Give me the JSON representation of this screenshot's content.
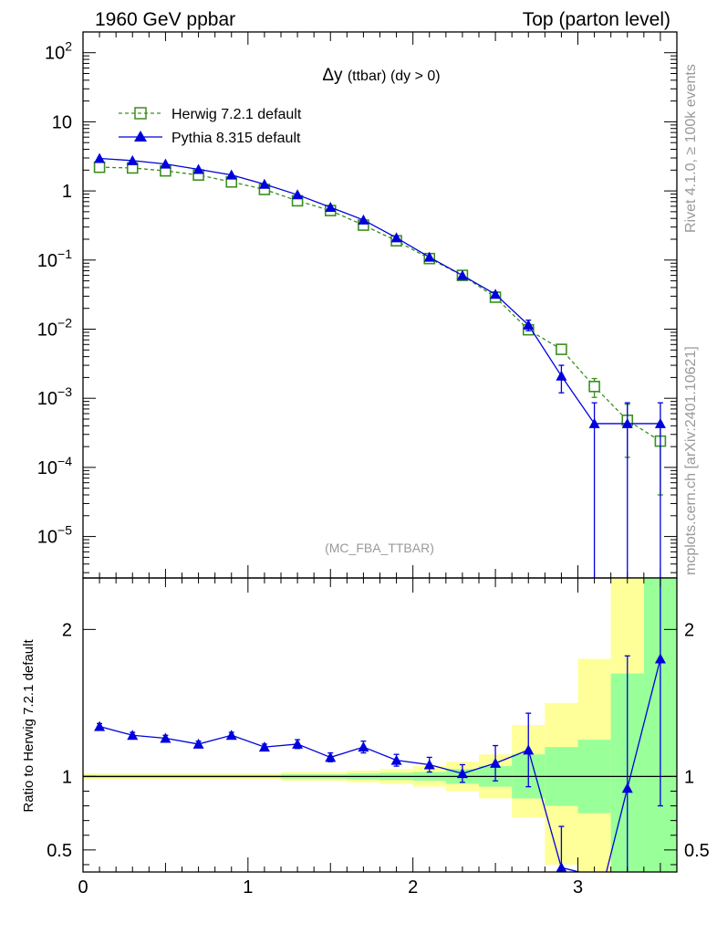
{
  "header": {
    "left": "1960 GeV ppbar",
    "right": "Top (parton level)"
  },
  "side_labels": {
    "rivet": "Rivet 4.1.0, ≥ 100k events",
    "mcplots": "mcplots.cern.ch [arXiv:2401.10621]"
  },
  "colors": {
    "herwig": "#3a8f1e",
    "pythia": "#0000dd",
    "band_yellow": "#ffff99",
    "band_green": "#99ff99"
  },
  "chart_data": [
    {
      "type": "line",
      "title_symbol": "Δy",
      "title_rest": "(ttbar) (dy > 0)",
      "analysis_tag": "(MC_FBA_TTBAR)",
      "yscale": "log",
      "xlim": [
        0,
        3.6
      ],
      "ylim_log10": [
        -5.6,
        2.3
      ],
      "ytick_labels": [
        {
          "base": "10",
          "exp": "2",
          "v": 2
        },
        {
          "base": "10",
          "exp": "",
          "v": 1
        },
        {
          "base": "1",
          "exp": "",
          "v": 0
        },
        {
          "base": "10",
          "exp": "−1",
          "v": -1
        },
        {
          "base": "10",
          "exp": "−2",
          "v": -2
        },
        {
          "base": "10",
          "exp": "−3",
          "v": -3
        },
        {
          "base": "10",
          "exp": "−4",
          "v": -4
        },
        {
          "base": "10",
          "exp": "−5",
          "v": -5
        }
      ],
      "legend_position": "top-left",
      "series": [
        {
          "name": "Herwig 7.2.1 default",
          "style": "dashed-open-square",
          "x": [
            0.1,
            0.3,
            0.5,
            0.7,
            0.9,
            1.1,
            1.3,
            1.5,
            1.7,
            1.9,
            2.1,
            2.3,
            2.5,
            2.7,
            2.9,
            3.1,
            3.3,
            3.5
          ],
          "y": [
            2.2,
            2.15,
            1.95,
            1.7,
            1.35,
            1.05,
            0.72,
            0.52,
            0.32,
            0.19,
            0.105,
            0.06,
            0.029,
            0.0098,
            0.0051,
            0.00148,
            0.00048,
            0.00024
          ],
          "err": [
            0.03,
            0.03,
            0.03,
            0.03,
            0.02,
            0.02,
            0.015,
            0.01,
            0.008,
            0.005,
            0.003,
            0.002,
            0.0012,
            0.0006,
            0.0006,
            0.00045,
            0.00034,
            0.0002
          ]
        },
        {
          "name": "Pythia 8.315 default",
          "style": "solid-filled-triangle",
          "x": [
            0.1,
            0.3,
            0.5,
            0.7,
            0.9,
            1.1,
            1.3,
            1.5,
            1.7,
            1.9,
            2.1,
            2.3,
            2.5,
            2.7,
            2.9,
            3.1,
            3.3,
            3.5
          ],
          "y": [
            2.95,
            2.75,
            2.45,
            2.05,
            1.7,
            1.25,
            0.88,
            0.58,
            0.38,
            0.21,
            0.11,
            0.06,
            0.032,
            0.0115,
            0.0021,
            0.00043,
            0.00043,
            0.00043
          ],
          "err": [
            0.04,
            0.04,
            0.035,
            0.03,
            0.025,
            0.02,
            0.015,
            0.01,
            0.008,
            0.006,
            0.004,
            0.003,
            0.002,
            0.002,
            0.0009,
            0.00043,
            0.00043,
            0.00043
          ]
        }
      ]
    },
    {
      "type": "line",
      "ylabel": "Ratio to Herwig 7.2.1 default",
      "xlim": [
        0,
        3.6
      ],
      "ylim": [
        0.35,
        2.35
      ],
      "xticks": [
        "0",
        "1",
        "2",
        "3"
      ],
      "yticks": [
        "0.5",
        "1",
        "2"
      ],
      "band_edges": [
        0,
        0.2,
        0.4,
        0.6,
        0.8,
        1.0,
        1.2,
        1.4,
        1.6,
        1.8,
        2.0,
        2.2,
        2.4,
        2.6,
        2.8,
        3.0,
        3.2,
        3.4,
        3.6
      ],
      "band_yellow": [
        [
          0.98,
          1.02
        ],
        [
          0.98,
          1.02
        ],
        [
          0.98,
          1.02
        ],
        [
          0.98,
          1.02
        ],
        [
          0.98,
          1.02
        ],
        [
          0.98,
          1.02
        ],
        [
          0.97,
          1.03
        ],
        [
          0.97,
          1.03
        ],
        [
          0.96,
          1.04
        ],
        [
          0.95,
          1.05
        ],
        [
          0.93,
          1.07
        ],
        [
          0.9,
          1.1
        ],
        [
          0.85,
          1.15
        ],
        [
          0.72,
          1.35
        ],
        [
          0.4,
          1.5
        ],
        [
          0.35,
          1.8
        ],
        [
          0.35,
          2.35
        ],
        [
          0.35,
          2.35
        ]
      ],
      "band_green": [
        [
          0.99,
          1.01
        ],
        [
          0.99,
          1.01
        ],
        [
          0.99,
          1.01
        ],
        [
          0.99,
          1.01
        ],
        [
          0.99,
          1.01
        ],
        [
          0.99,
          1.01
        ],
        [
          0.985,
          1.015
        ],
        [
          0.985,
          1.015
        ],
        [
          0.98,
          1.02
        ],
        [
          0.975,
          1.025
        ],
        [
          0.97,
          1.03
        ],
        [
          0.95,
          1.05
        ],
        [
          0.93,
          1.07
        ],
        [
          0.85,
          1.15
        ],
        [
          0.8,
          1.2
        ],
        [
          0.75,
          1.25
        ],
        [
          0.35,
          1.7
        ],
        [
          0.35,
          2.35
        ]
      ],
      "series": [
        {
          "name": "Pythia 8.315 default / Herwig 7.2.1 default",
          "x": [
            0.1,
            0.3,
            0.5,
            0.7,
            0.9,
            1.1,
            1.3,
            1.5,
            1.7,
            1.9,
            2.1,
            2.3,
            2.5,
            2.7,
            2.9,
            3.3,
            3.5
          ],
          "y": [
            1.34,
            1.28,
            1.26,
            1.22,
            1.28,
            1.2,
            1.22,
            1.13,
            1.2,
            1.11,
            1.08,
            1.02,
            1.09,
            1.18,
            0.38,
            0.92,
            1.8
          ],
          "err": [
            0.02,
            0.02,
            0.02,
            0.02,
            0.02,
            0.02,
            0.03,
            0.03,
            0.04,
            0.04,
            0.05,
            0.06,
            0.12,
            0.25,
            0.28,
            0.9,
            1.0
          ]
        }
      ]
    }
  ]
}
